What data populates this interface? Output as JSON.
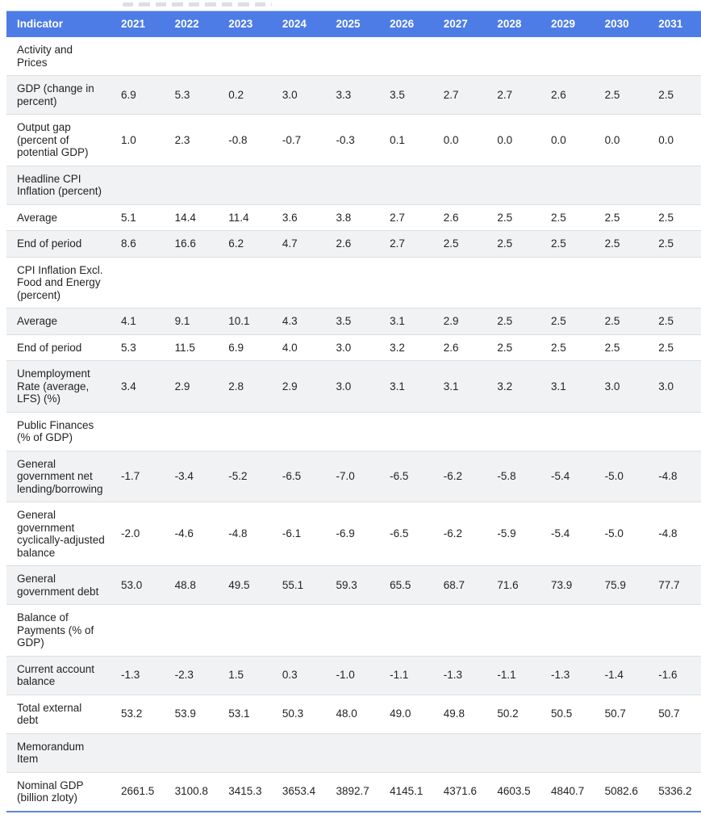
{
  "page": {
    "accent_color": "#4d7ce6",
    "stripe_color": "#f1f2f3",
    "bottom_rule_color": "#5e85de"
  },
  "table": {
    "columns": [
      "Indicator",
      "2021",
      "2022",
      "2023",
      "2024",
      "2025",
      "2026",
      "2027",
      "2028",
      "2029",
      "2030",
      "2031"
    ],
    "rows": [
      {
        "label": "Activity and Prices",
        "section": true,
        "values": []
      },
      {
        "label": "GDP (change in percent)",
        "section": false,
        "values": [
          "6.9",
          "5.3",
          "0.2",
          "3.0",
          "3.3",
          "3.5",
          "2.7",
          "2.7",
          "2.6",
          "2.5",
          "2.5"
        ]
      },
      {
        "label": "Output gap (percent of potential GDP)",
        "section": false,
        "values": [
          "1.0",
          "2.3",
          "-0.8",
          "-0.7",
          "-0.3",
          "0.1",
          "0.0",
          "0.0",
          "0.0",
          "0.0",
          "0.0"
        ]
      },
      {
        "label": "Headline CPI Inflation (percent)",
        "section": true,
        "values": []
      },
      {
        "label": "Average",
        "section": false,
        "values": [
          "5.1",
          "14.4",
          "11.4",
          "3.6",
          "3.8",
          "2.7",
          "2.6",
          "2.5",
          "2.5",
          "2.5",
          "2.5"
        ]
      },
      {
        "label": "End of period",
        "section": false,
        "values": [
          "8.6",
          "16.6",
          "6.2",
          "4.7",
          "2.6",
          "2.7",
          "2.5",
          "2.5",
          "2.5",
          "2.5",
          "2.5"
        ]
      },
      {
        "label": "CPI Inflation Excl. Food and Energy (percent)",
        "section": true,
        "values": []
      },
      {
        "label": "Average",
        "section": false,
        "values": [
          "4.1",
          "9.1",
          "10.1",
          "4.3",
          "3.5",
          "3.1",
          "2.9",
          "2.5",
          "2.5",
          "2.5",
          "2.5"
        ]
      },
      {
        "label": "End of period",
        "section": false,
        "values": [
          "5.3",
          "11.5",
          "6.9",
          "4.0",
          "3.0",
          "3.2",
          "2.6",
          "2.5",
          "2.5",
          "2.5",
          "2.5"
        ]
      },
      {
        "label": "Unemployment Rate (average, LFS) (%)",
        "section": false,
        "values": [
          "3.4",
          "2.9",
          "2.8",
          "2.9",
          "3.0",
          "3.1",
          "3.1",
          "3.2",
          "3.1",
          "3.0",
          "3.0"
        ]
      },
      {
        "label": "Public Finances (% of GDP)",
        "section": true,
        "values": []
      },
      {
        "label": "General government net lending/borrowing",
        "section": false,
        "values": [
          "-1.7",
          "-3.4",
          "-5.2",
          "-6.5",
          "-7.0",
          "-6.5",
          "-6.2",
          "-5.8",
          "-5.4",
          "-5.0",
          "-4.8"
        ]
      },
      {
        "label": "General government cyclically-adjusted balance",
        "section": false,
        "values": [
          "-2.0",
          "-4.6",
          "-4.8",
          "-6.1",
          "-6.9",
          "-6.5",
          "-6.2",
          "-5.9",
          "-5.4",
          "-5.0",
          "-4.8"
        ]
      },
      {
        "label": "General government debt",
        "section": false,
        "values": [
          "53.0",
          "48.8",
          "49.5",
          "55.1",
          "59.3",
          "65.5",
          "68.7",
          "71.6",
          "73.9",
          "75.9",
          "77.7"
        ]
      },
      {
        "label": "Balance of Payments (% of GDP)",
        "section": true,
        "values": []
      },
      {
        "label": "Current account balance",
        "section": false,
        "values": [
          "-1.3",
          "-2.3",
          "1.5",
          "0.3",
          "-1.0",
          "-1.1",
          "-1.3",
          "-1.1",
          "-1.3",
          "-1.4",
          "-1.6"
        ]
      },
      {
        "label": "Total external debt",
        "section": false,
        "values": [
          "53.2",
          "53.9",
          "53.1",
          "50.3",
          "48.0",
          "49.0",
          "49.8",
          "50.2",
          "50.5",
          "50.7",
          "50.7"
        ]
      },
      {
        "label": "Memorandum Item",
        "section": true,
        "values": []
      },
      {
        "label": "Nominal GDP (billion zloty)",
        "section": false,
        "values": [
          "2661.5",
          "3100.8",
          "3415.3",
          "3653.4",
          "3892.7",
          "4145.1",
          "4371.6",
          "4603.5",
          "4840.7",
          "5082.6",
          "5336.2"
        ]
      }
    ]
  }
}
